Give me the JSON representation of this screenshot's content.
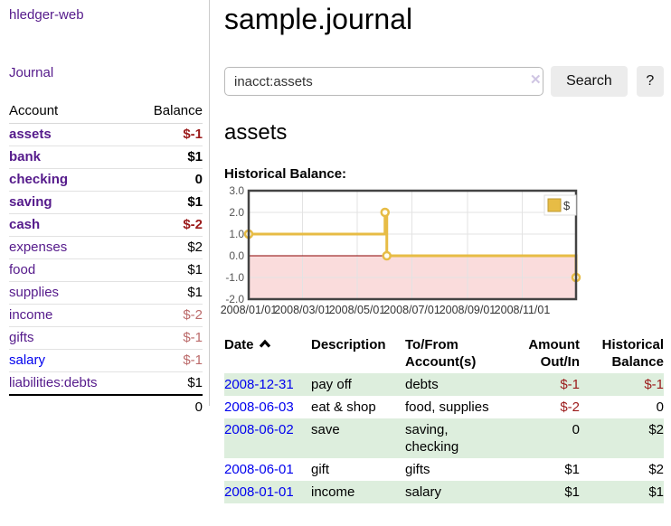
{
  "app": {
    "brand": "hledger-web"
  },
  "sidebar": {
    "journal_label": "Journal",
    "accounts_table": {
      "headers": {
        "account": "Account",
        "balance": "Balance"
      },
      "rows": [
        {
          "name": "assets",
          "depth": 1,
          "bold": true,
          "balance": "$-1"
        },
        {
          "name": "bank",
          "depth": 2,
          "bold": true,
          "balance": "$1"
        },
        {
          "name": "checking",
          "depth": 3,
          "bold": true,
          "balance": "0"
        },
        {
          "name": "saving",
          "depth": 3,
          "bold": true,
          "balance": "$1"
        },
        {
          "name": "cash",
          "depth": 2,
          "bold": true,
          "balance": "$-2"
        },
        {
          "name": "expenses",
          "depth": 1,
          "bold": false,
          "balance": "$2"
        },
        {
          "name": "food",
          "depth": 2,
          "bold": false,
          "balance": "$1"
        },
        {
          "name": "supplies",
          "depth": 2,
          "bold": false,
          "balance": "$1"
        },
        {
          "name": "income",
          "depth": 1,
          "bold": false,
          "balance": "$-2"
        },
        {
          "name": "gifts",
          "depth": 2,
          "bold": false,
          "balance": "$-1"
        },
        {
          "name": "salary",
          "depth": 2,
          "bold": false,
          "balance": "$-1"
        },
        {
          "name": "liabilities:debts",
          "depth": 1,
          "bold": false,
          "balance": "$1"
        }
      ],
      "total": "0"
    }
  },
  "header": {
    "title": "sample.journal"
  },
  "search": {
    "value": "inacct:assets",
    "clear_icon": "✕",
    "button_label": "Search",
    "help_label": "?"
  },
  "register": {
    "account_heading": "assets",
    "chart_label": "Historical Balance:"
  },
  "chart_data": {
    "type": "line",
    "title": "Historical Balance:",
    "step": true,
    "series": [
      {
        "name": "$",
        "color": "#e7bc45",
        "points": [
          [
            "2008-01-01",
            1
          ],
          [
            "2008-06-01",
            2
          ],
          [
            "2008-06-03",
            0
          ],
          [
            "2008-12-31",
            -1
          ]
        ]
      }
    ],
    "x_range": [
      "2008-01-01",
      "2008-12-31"
    ],
    "ylim": [
      -2,
      3
    ],
    "y_ticks": [
      3,
      2,
      1,
      0,
      -1,
      -2
    ],
    "x_tick_labels": [
      "2008/01/01",
      "2008/03/01",
      "2008/05/01",
      "2008/07/01",
      "2008/09/01",
      "2008/11/01"
    ],
    "legend": {
      "label": "$",
      "position": "top-right"
    },
    "grid": true,
    "negative_region_color": "#fadcdc",
    "zero_line_color": "#8b0000"
  },
  "transactions": {
    "headers": {
      "date": "Date",
      "description": "Description",
      "account": "To/From\nAccount(s)",
      "amount": "Amount\nOut/In",
      "balance": "Historical\nBalance"
    },
    "rows": [
      {
        "date": "2008-12-31",
        "description": "pay off",
        "accounts": "debts",
        "amount": "$-1",
        "balance": "$-1"
      },
      {
        "date": "2008-06-03",
        "description": "eat & shop",
        "accounts": "food, supplies",
        "amount": "$-2",
        "balance": "0"
      },
      {
        "date": "2008-06-02",
        "description": "save",
        "accounts": "saving,\nchecking",
        "amount": "0",
        "balance": "$2"
      },
      {
        "date": "2008-06-01",
        "description": "gift",
        "accounts": "gifts",
        "amount": "$1",
        "balance": "$2"
      },
      {
        "date": "2008-01-01",
        "description": "income",
        "accounts": "salary",
        "amount": "$1",
        "balance": "$1"
      }
    ]
  }
}
